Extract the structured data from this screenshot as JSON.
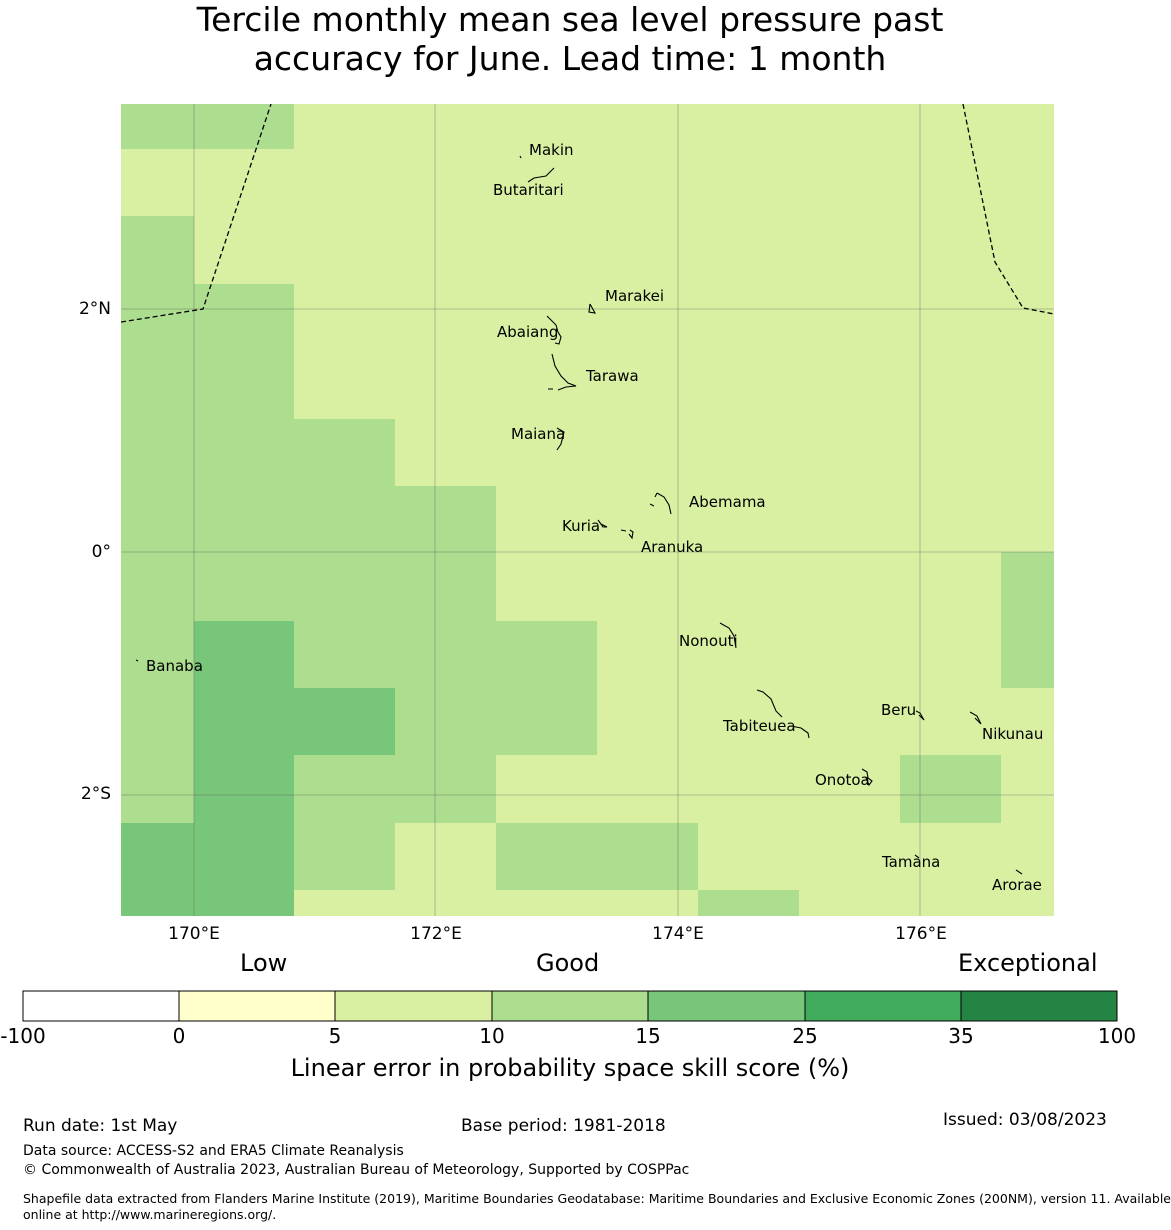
{
  "title": {
    "line1": "Tercile monthly mean sea level pressure past",
    "line2": "accuracy for June. Lead time: 1 month"
  },
  "axes": {
    "x_ticks": [
      {
        "label": "170°E",
        "lon": 170
      },
      {
        "label": "172°E",
        "lon": 172
      },
      {
        "label": "174°E",
        "lon": 174
      },
      {
        "label": "176°E",
        "lon": 176
      }
    ],
    "y_ticks": [
      {
        "label": "2°N",
        "lat": 2
      },
      {
        "label": "0°",
        "lat": 0
      },
      {
        "label": "2°S",
        "lat": -2
      }
    ],
    "lon_range": [
      169.4,
      177.1
    ],
    "lat_range": [
      -3.0,
      3.7
    ],
    "grid": true
  },
  "places": [
    {
      "name": "Makin",
      "lon": 173.0,
      "lat": 3.35
    },
    {
      "name": "Butaritari",
      "lon": 172.8,
      "lat": 3.05
    },
    {
      "name": "Marakei",
      "lon": 173.3,
      "lat": 2.0
    },
    {
      "name": "Abaiang",
      "lon": 173.0,
      "lat": 1.85
    },
    {
      "name": "Tarawa",
      "lon": 173.05,
      "lat": 1.45
    },
    {
      "name": "Maiana",
      "lon": 173.0,
      "lat": 0.95
    },
    {
      "name": "Abemama",
      "lon": 173.9,
      "lat": 0.4
    },
    {
      "name": "Kuria",
      "lon": 173.4,
      "lat": 0.22
    },
    {
      "name": "Aranuka",
      "lon": 173.6,
      "lat": 0.17
    },
    {
      "name": "Nonouti",
      "lon": 174.4,
      "lat": -0.65
    },
    {
      "name": "Banaba",
      "lon": 169.55,
      "lat": -0.87
    },
    {
      "name": "Beru",
      "lon": 176.0,
      "lat": -1.3
    },
    {
      "name": "Nikunau",
      "lon": 176.45,
      "lat": -1.37
    },
    {
      "name": "Tabiteuea",
      "lon": 174.9,
      "lat": -1.35
    },
    {
      "name": "Onotoa",
      "lon": 175.55,
      "lat": -1.8
    },
    {
      "name": "Tamana",
      "lon": 175.97,
      "lat": -2.5
    },
    {
      "name": "Arorae",
      "lon": 176.82,
      "lat": -2.65
    }
  ],
  "legend": {
    "qualitative": [
      "Low",
      "Good",
      "Exceptional"
    ],
    "bins": [
      {
        "from": -100,
        "to": 0,
        "color": "#ffffff"
      },
      {
        "from": 0,
        "to": 5,
        "color": "#ffffcc"
      },
      {
        "from": 5,
        "to": 10,
        "color": "#d9f0a3"
      },
      {
        "from": 10,
        "to": 15,
        "color": "#addd8e"
      },
      {
        "from": 15,
        "to": 25,
        "color": "#78c679"
      },
      {
        "from": 25,
        "to": 35,
        "color": "#41ab5d"
      },
      {
        "from": 35,
        "to": 100,
        "color": "#238443"
      }
    ],
    "tick_labels": [
      "-100",
      "0",
      "5",
      "10",
      "15",
      "25",
      "35",
      "100"
    ],
    "label": "Linear error in probability space skill score (%)"
  },
  "footer": {
    "run_date": "Run date: 1st May",
    "base_period": "Base period: 1981-2018",
    "issued": "Issued: 03/08/2023",
    "data_source": "Data source: ACCESS-S2 and ERA5 Climate Reanalysis",
    "copyright": "© Commonwealth of Australia 2023, Australian Bureau of Meteorology, Supported by COSPPac",
    "shapefile_line1": "Shapefile data extracted from Flanders Marine Institute (2019), Maritime Boundaries Geodatabase: Maritime Boundaries and Exclusive Economic Zones (200NM), version 11. Available",
    "shapefile_line2": "online at http://www.marineregions.org/."
  }
}
